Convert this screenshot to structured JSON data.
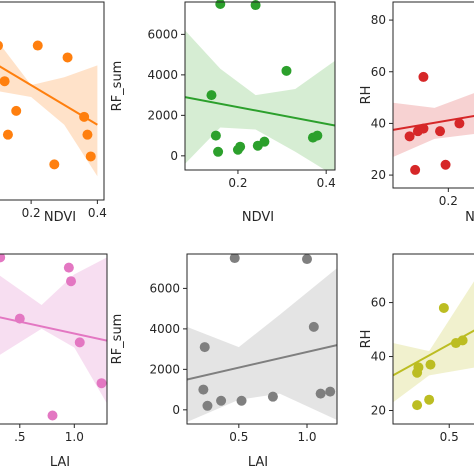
{
  "chart_data": [
    {
      "id": "p1",
      "type": "scatter",
      "color": "#ff7f0e",
      "band": "#ffddc0",
      "xlabel": "NDVI",
      "ylabel": "",
      "xlim": [
        0.1,
        0.42
      ],
      "ylim": [
        0,
        1
      ],
      "xticks": [
        {
          "v": 0.2,
          "label": "0.2"
        },
        {
          "v": 0.4,
          "label": "0.4"
        }
      ],
      "yticks": [],
      "points": [
        {
          "x": 0.1,
          "y": 0.78
        },
        {
          "x": 0.12,
          "y": 0.6
        },
        {
          "x": 0.155,
          "y": 0.45
        },
        {
          "x": 0.22,
          "y": 0.78
        },
        {
          "x": 0.31,
          "y": 0.72
        },
        {
          "x": 0.36,
          "y": 0.42
        },
        {
          "x": 0.37,
          "y": 0.33
        },
        {
          "x": 0.13,
          "y": 0.33
        },
        {
          "x": 0.27,
          "y": 0.18
        },
        {
          "x": 0.38,
          "y": 0.22
        }
      ],
      "fit": [
        {
          "x": 0.1,
          "y": 0.68
        },
        {
          "x": 0.4,
          "y": 0.38
        }
      ],
      "ci": {
        "x": [
          0.1,
          0.2,
          0.3,
          0.4
        ],
        "lower": [
          0.55,
          0.52,
          0.38,
          0.12
        ],
        "upper": [
          0.8,
          0.58,
          0.62,
          0.68
        ]
      }
    },
    {
      "id": "p2",
      "type": "scatter",
      "color": "#2ca02c",
      "band": "#cfeacb",
      "xlabel": "NDVI",
      "ylabel": "RF_sum",
      "xlim": [
        0.08,
        0.42
      ],
      "ylim": [
        -700,
        7600
      ],
      "xticks": [
        {
          "v": 0.2,
          "label": "0.2"
        },
        {
          "v": 0.4,
          "label": "0.4"
        }
      ],
      "yticks": [
        {
          "v": 0,
          "label": "0"
        },
        {
          "v": 2000,
          "label": "2000"
        },
        {
          "v": 4000,
          "label": "4000"
        },
        {
          "v": 6000,
          "label": "6000"
        }
      ],
      "points": [
        {
          "x": 0.16,
          "y": 7500
        },
        {
          "x": 0.24,
          "y": 7450
        },
        {
          "x": 0.31,
          "y": 4200
        },
        {
          "x": 0.14,
          "y": 3000
        },
        {
          "x": 0.15,
          "y": 1000
        },
        {
          "x": 0.155,
          "y": 200
        },
        {
          "x": 0.2,
          "y": 300
        },
        {
          "x": 0.205,
          "y": 450
        },
        {
          "x": 0.245,
          "y": 500
        },
        {
          "x": 0.26,
          "y": 700
        },
        {
          "x": 0.37,
          "y": 900
        },
        {
          "x": 0.38,
          "y": 1000
        }
      ],
      "fit": [
        {
          "x": 0.08,
          "y": 2900
        },
        {
          "x": 0.42,
          "y": 1500
        }
      ],
      "ci": {
        "x": [
          0.08,
          0.16,
          0.24,
          0.33,
          0.42
        ],
        "lower": [
          -400,
          1400,
          1300,
          200,
          -1000
        ],
        "upper": [
          6200,
          4300,
          3000,
          3300,
          4700
        ]
      }
    },
    {
      "id": "p3",
      "type": "scatter",
      "color": "#d62728",
      "band": "#f6caca",
      "xlabel": "N",
      "ylabel": "RH",
      "xlim": [
        0.1,
        0.25
      ],
      "ylim": [
        15,
        87
      ],
      "xticks": [
        {
          "v": 0.2,
          "label": "0.2"
        }
      ],
      "yticks": [
        {
          "v": 20,
          "label": "20"
        },
        {
          "v": 40,
          "label": "40"
        },
        {
          "v": 60,
          "label": "60"
        },
        {
          "v": 80,
          "label": "80"
        }
      ],
      "points": [
        {
          "x": 0.155,
          "y": 58
        },
        {
          "x": 0.13,
          "y": 35
        },
        {
          "x": 0.145,
          "y": 37
        },
        {
          "x": 0.155,
          "y": 38
        },
        {
          "x": 0.185,
          "y": 37
        },
        {
          "x": 0.195,
          "y": 24
        },
        {
          "x": 0.14,
          "y": 22
        },
        {
          "x": 0.22,
          "y": 40
        }
      ],
      "fit": [
        {
          "x": 0.1,
          "y": 37.5
        },
        {
          "x": 0.25,
          "y": 43
        }
      ],
      "ci": {
        "x": [
          0.1,
          0.175,
          0.25
        ],
        "lower": [
          27,
          34,
          36
        ],
        "upper": [
          48,
          46,
          52
        ]
      }
    },
    {
      "id": "p4",
      "type": "scatter",
      "color": "#e377c2",
      "band": "#f6d8ee",
      "xlabel": "LAI",
      "ylabel": "",
      "xlim": [
        0.3,
        1.3
      ],
      "ylim": [
        0,
        1
      ],
      "xticks": [
        {
          "v": 0.5,
          "label": ".5"
        },
        {
          "v": 1.0,
          "label": "1.0"
        }
      ],
      "yticks": [],
      "points": [
        {
          "x": 0.32,
          "y": 0.98
        },
        {
          "x": 0.5,
          "y": 0.62
        },
        {
          "x": 0.95,
          "y": 0.92
        },
        {
          "x": 0.97,
          "y": 0.84
        },
        {
          "x": 1.05,
          "y": 0.48
        },
        {
          "x": 1.25,
          "y": 0.24
        },
        {
          "x": 0.8,
          "y": 0.05
        }
      ],
      "fit": [
        {
          "x": 0.3,
          "y": 0.63
        },
        {
          "x": 1.3,
          "y": 0.49
        }
      ],
      "ci": {
        "x": [
          0.3,
          0.7,
          1.0,
          1.3
        ],
        "lower": [
          0.4,
          0.56,
          0.45,
          0.12
        ],
        "upper": [
          0.88,
          0.7,
          0.88,
          0.98
        ]
      }
    },
    {
      "id": "p5",
      "type": "scatter",
      "color": "#7f7f7f",
      "band": "#dfdfdf",
      "xlabel": "LAI",
      "ylabel": "RF_sum",
      "xlim": [
        0.12,
        1.22
      ],
      "ylim": [
        -700,
        7700
      ],
      "xticks": [
        {
          "v": 0.5,
          "label": "0.5"
        },
        {
          "v": 1.0,
          "label": "1.0"
        }
      ],
      "yticks": [
        {
          "v": 0,
          "label": "0"
        },
        {
          "v": 2000,
          "label": "2000"
        },
        {
          "v": 4000,
          "label": "4000"
        },
        {
          "v": 6000,
          "label": "6000"
        }
      ],
      "points": [
        {
          "x": 0.47,
          "y": 7500
        },
        {
          "x": 1.0,
          "y": 7450
        },
        {
          "x": 1.05,
          "y": 4100
        },
        {
          "x": 0.25,
          "y": 3100
        },
        {
          "x": 0.24,
          "y": 1000
        },
        {
          "x": 0.27,
          "y": 200
        },
        {
          "x": 0.37,
          "y": 450
        },
        {
          "x": 0.52,
          "y": 450
        },
        {
          "x": 0.75,
          "y": 650
        },
        {
          "x": 1.1,
          "y": 800
        },
        {
          "x": 1.17,
          "y": 900
        }
      ],
      "fit": [
        {
          "x": 0.12,
          "y": 1500
        },
        {
          "x": 1.22,
          "y": 3200
        }
      ],
      "ci": {
        "x": [
          0.12,
          0.5,
          0.8,
          1.22
        ],
        "lower": [
          -600,
          500,
          800,
          -500
        ],
        "upper": [
          4100,
          3100,
          4700,
          7000
        ]
      }
    },
    {
      "id": "p6",
      "type": "scatter",
      "color": "#bcbd22",
      "band": "#eeefc6",
      "xlabel": "",
      "ylabel": "RH",
      "xlim": [
        0.08,
        0.7
      ],
      "ylim": [
        15,
        78
      ],
      "xticks": [
        {
          "v": 0.5,
          "label": "0.5"
        }
      ],
      "yticks": [
        {
          "v": 20,
          "label": "20"
        },
        {
          "v": 40,
          "label": "40"
        },
        {
          "v": 60,
          "label": "60"
        }
      ],
      "points": [
        {
          "x": 0.27,
          "y": 36
        },
        {
          "x": 0.26,
          "y": 34
        },
        {
          "x": 0.36,
          "y": 37
        },
        {
          "x": 0.46,
          "y": 58
        },
        {
          "x": 0.55,
          "y": 45
        },
        {
          "x": 0.35,
          "y": 24
        },
        {
          "x": 0.26,
          "y": 22
        },
        {
          "x": 0.6,
          "y": 46
        }
      ],
      "fit": [
        {
          "x": 0.08,
          "y": 33
        },
        {
          "x": 0.7,
          "y": 50
        }
      ],
      "ci": {
        "x": [
          0.08,
          0.35,
          0.7
        ],
        "lower": [
          23,
          33,
          36
        ],
        "upper": [
          45,
          42,
          69
        ]
      }
    }
  ]
}
